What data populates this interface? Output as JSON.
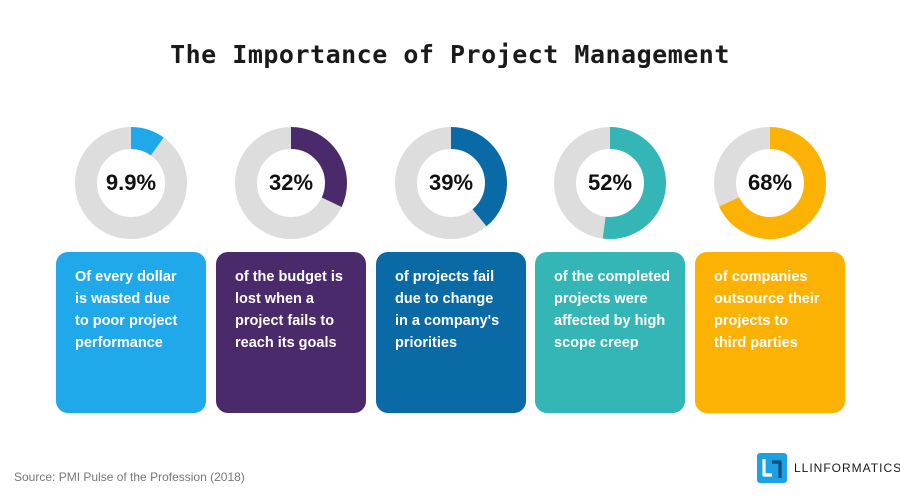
{
  "title": "The Importance of Project Management",
  "colors": {
    "track": "#dddddd",
    "text_on_card": "#ffffff"
  },
  "chart_data": {
    "type": "pie",
    "title": "The Importance of Project Management",
    "items": [
      {
        "label": "9.9%",
        "value": 9.9,
        "description": "Of every dollar is wasted due to poor project performance",
        "lines": [
          "Of every dollar",
          "is wasted due",
          "to poor project",
          "performance"
        ],
        "color": "#1fa9ea"
      },
      {
        "label": "32%",
        "value": 32,
        "description": "of the budget is lost when a project fails to reach its goals",
        "lines": [
          "of the budget is",
          "lost when a",
          "project fails to",
          "reach its goals"
        ],
        "color": "#4b2a6b"
      },
      {
        "label": "39%",
        "value": 39,
        "description": "of projects fail due to change in a company's priorities",
        "lines": [
          "of projects fail",
          "due to change",
          "in a company's",
          "priorities"
        ],
        "color": "#0a6aa6"
      },
      {
        "label": "52%",
        "value": 52,
        "description": "of the completed projects were affected by high scope creep",
        "lines": [
          "of the completed",
          "projects were",
          "affected by high",
          "scope creep"
        ],
        "color": "#35b6b6"
      },
      {
        "label": "68%",
        "value": 68,
        "description": "of companies outsource their projects to third parties",
        "lines": [
          "of companies",
          "outsource their",
          "projects to",
          "third parties"
        ],
        "color": "#fbb203"
      }
    ]
  },
  "footer": {
    "source": "Source: PMI Pulse of the Profession (2018)",
    "brand_name": "LLINFORMATICS",
    "brand_icon": "llinformatics-logo-icon",
    "brand_color": "#1da1e2"
  }
}
